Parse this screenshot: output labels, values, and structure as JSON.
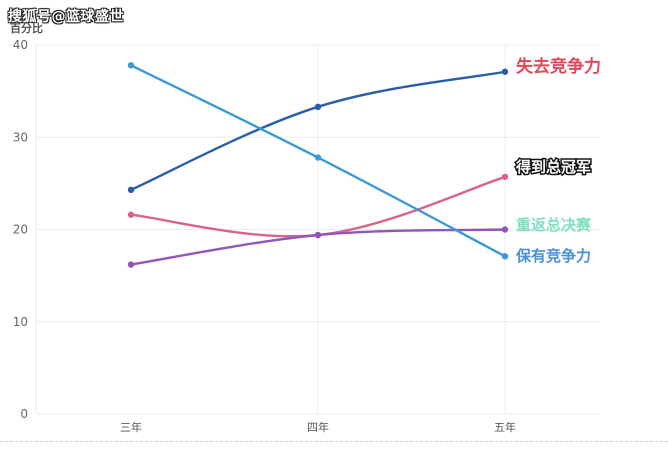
{
  "watermark": "搜狐号@篮球盛世",
  "chart_data": {
    "type": "line",
    "title": "",
    "ylabel": "百分比",
    "xlabel": "",
    "categories": [
      "三年",
      "四年",
      "五年"
    ],
    "ylim": [
      0,
      40
    ],
    "yticks": [
      0,
      10,
      20,
      30,
      40
    ],
    "grid": true,
    "legend": "end-of-line labels",
    "series": [
      {
        "name": "失去竞争力",
        "values": [
          24.3,
          33.3,
          37.1
        ],
        "color": "#2a5da8",
        "label_color": "#e0475a"
      },
      {
        "name": "得到总冠军",
        "values": [
          21.6,
          19.4,
          25.7
        ],
        "color": "#d9628f",
        "label_color": "#ffffff"
      },
      {
        "name": "重返总决赛",
        "values": [
          16.2,
          19.4,
          20.0
        ],
        "color": "#9156b8",
        "label_color": "#7fe0c4"
      },
      {
        "name": "保有竞争力",
        "values": [
          37.8,
          27.8,
          17.1
        ],
        "color": "#3a9ad6",
        "label_color": "#4a90d9"
      }
    ]
  }
}
